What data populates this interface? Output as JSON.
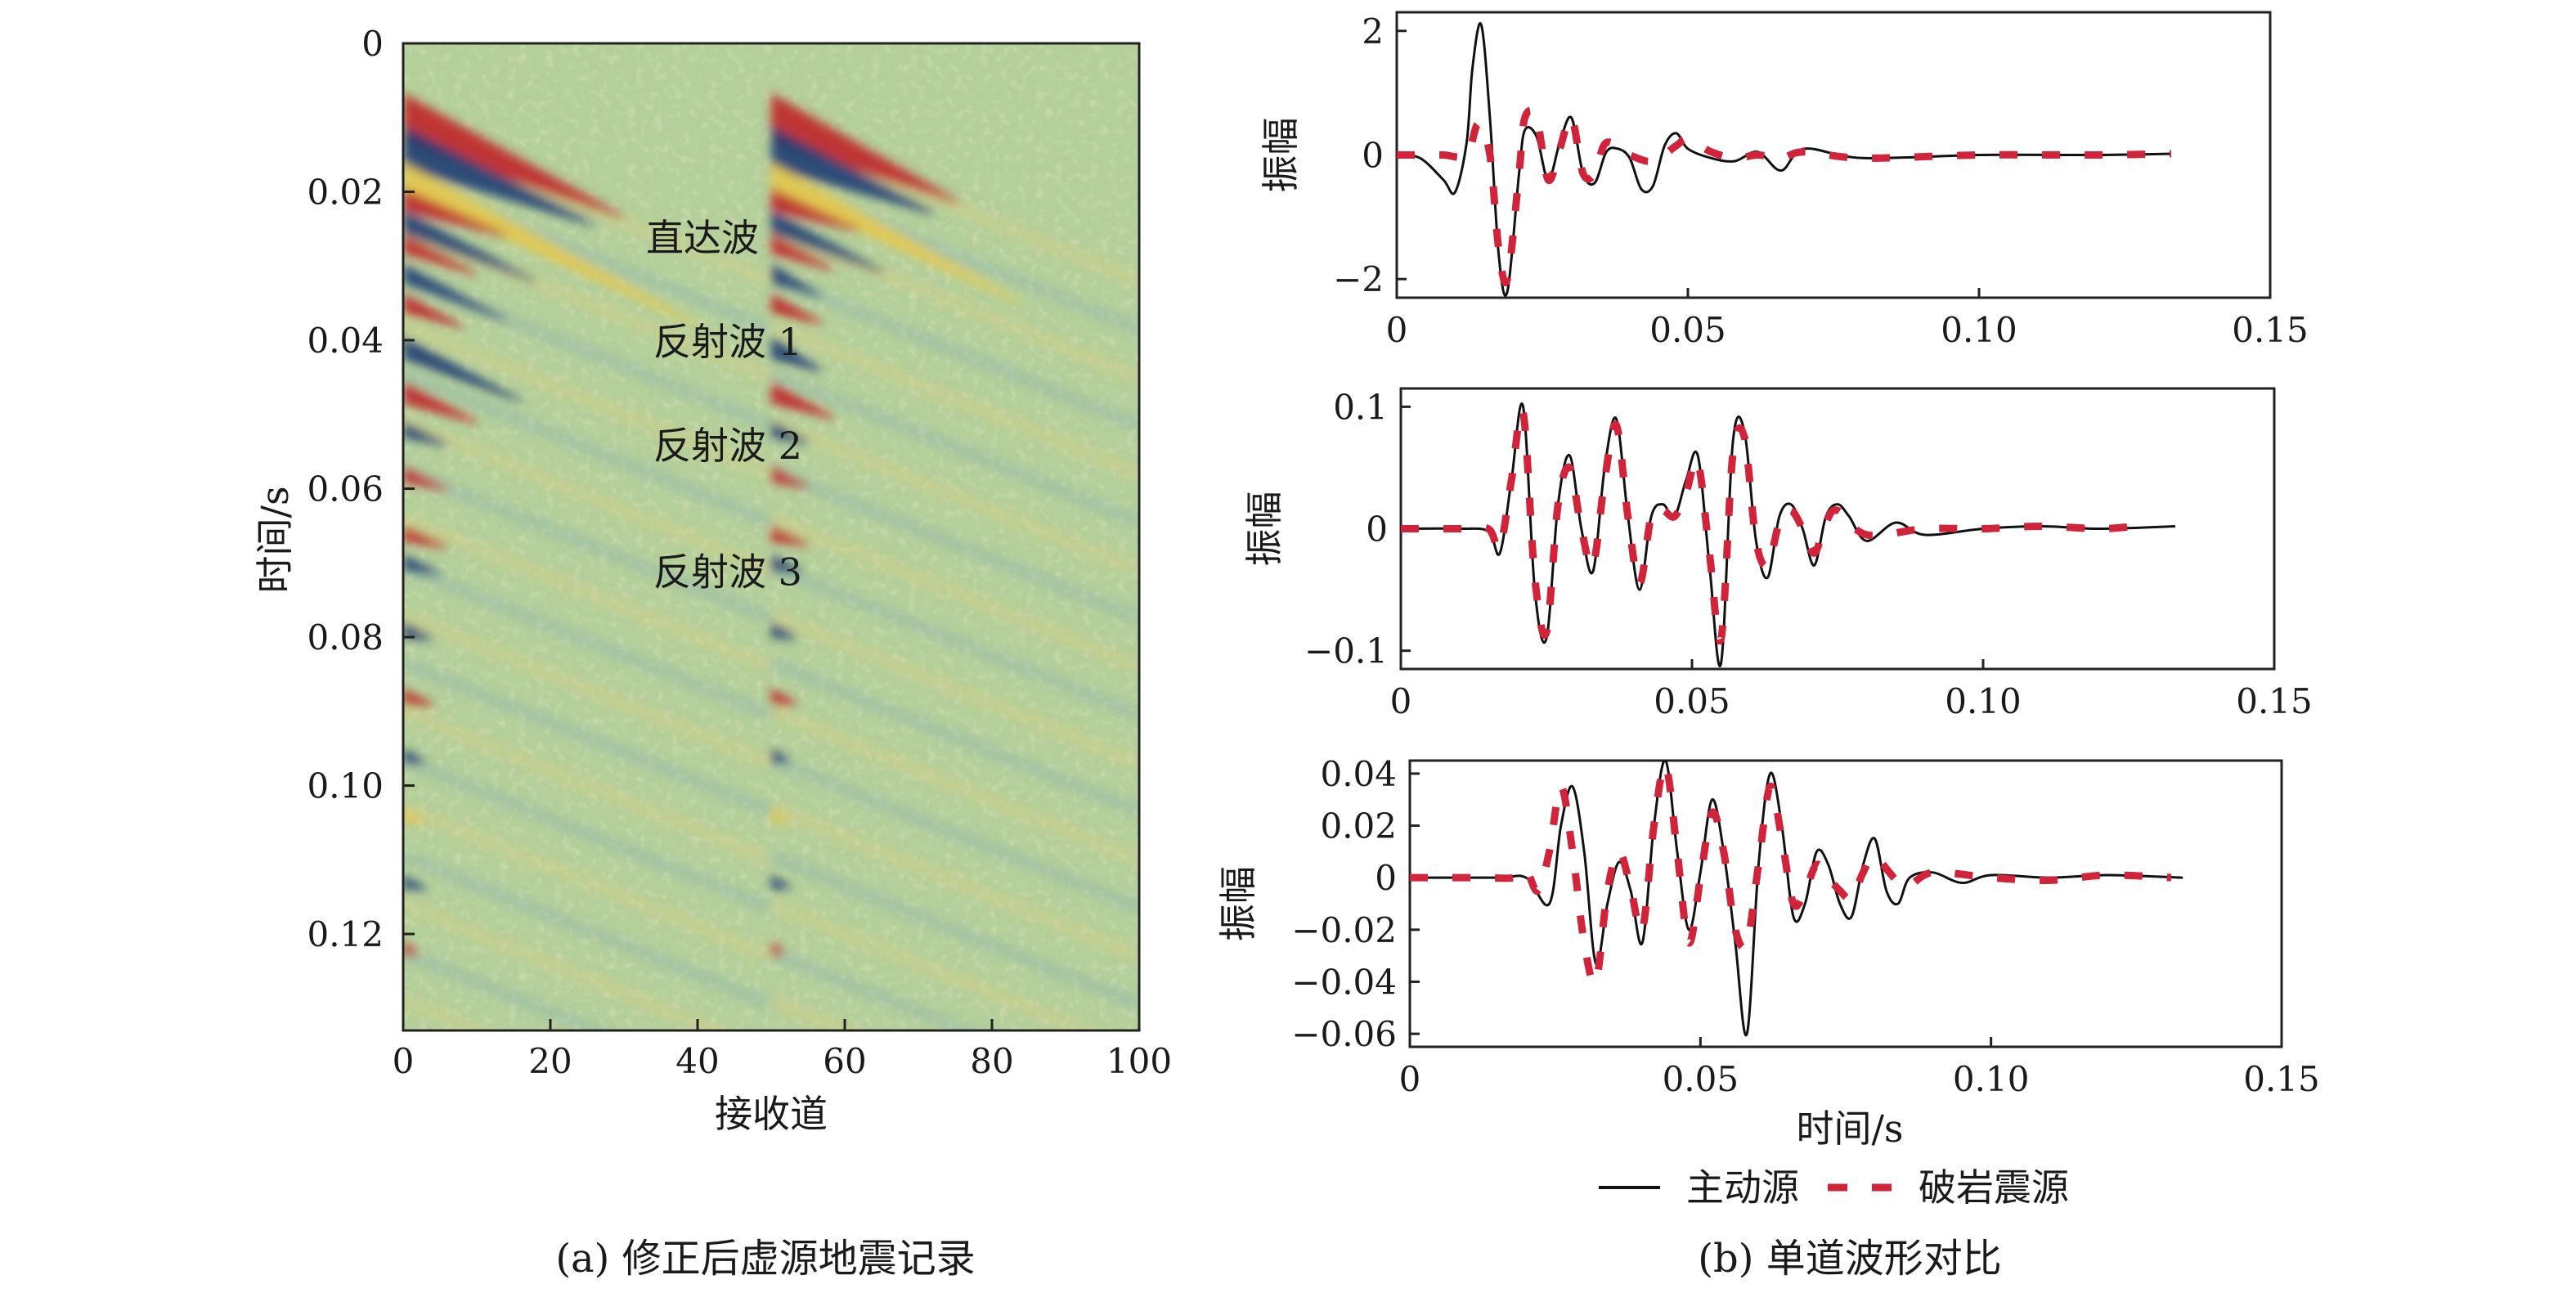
{
  "panel_a": {
    "caption": "(a) 修正后虚源地震记录"
  },
  "panel_b": {
    "caption": "(b) 单道波形对比"
  },
  "chart_data": [
    {
      "type": "heatmap",
      "xlabel": "接收道",
      "ylabel": "时间/s",
      "xlim": [
        0,
        100
      ],
      "ylim": [
        0.133,
        0
      ],
      "xticks": [
        0,
        20,
        40,
        60,
        80,
        100
      ],
      "yticks": [
        0,
        0.02,
        0.04,
        0.06,
        0.08,
        0.1,
        0.12
      ],
      "ytick_labels": [
        "0",
        "0.02",
        "0.04",
        "0.06",
        "0.08",
        "0.10",
        "0.12"
      ],
      "annotations": [
        {
          "text": "直达波",
          "x": 33,
          "y": 0.028
        },
        {
          "text": "反射波 1",
          "x": 34,
          "y": 0.042
        },
        {
          "text": "反射波 2",
          "x": 34,
          "y": 0.056
        },
        {
          "text": "反射波 3",
          "x": 34,
          "y": 0.073
        }
      ],
      "colors": {
        "background": "#b4cf9a",
        "positive": "#c0242a",
        "negative": "#1f3d73",
        "mid": "#e7c84a"
      }
    },
    {
      "type": "line",
      "ylabel": "振幅",
      "xlim": [
        0,
        0.15
      ],
      "ylim": [
        -2.3,
        2.3
      ],
      "xticks": [
        0,
        0.05,
        0.1,
        0.15
      ],
      "xtick_labels": [
        "0",
        "0.05",
        "0.10",
        "0.15"
      ],
      "yticks": [
        -2,
        0,
        2
      ],
      "ytick_labels": [
        "−2",
        "0",
        "2"
      ],
      "series": [
        {
          "name": "主动源",
          "color": "#111111",
          "x": [
            0,
            0.004,
            0.008,
            0.01,
            0.012,
            0.013,
            0.0145,
            0.016,
            0.0175,
            0.019,
            0.021,
            0.022,
            0.024,
            0.026,
            0.028,
            0.03,
            0.032,
            0.034,
            0.036,
            0.038,
            0.04,
            0.042,
            0.044,
            0.046,
            0.048,
            0.05,
            0.054,
            0.058,
            0.062,
            0.066,
            0.07,
            0.08,
            0.1,
            0.12,
            0.133
          ],
          "y": [
            0,
            -0.05,
            -0.4,
            -0.6,
            0.2,
            1.4,
            2.1,
            0.6,
            -1.6,
            -2.2,
            -0.3,
            0.4,
            0.3,
            -0.4,
            0.2,
            0.6,
            -0.3,
            -0.45,
            0.05,
            0.1,
            -0.05,
            -0.55,
            -0.5,
            0.15,
            0.35,
            0.1,
            -0.05,
            -0.1,
            0.05,
            -0.25,
            0.1,
            -0.05,
            0,
            0,
            0.02
          ]
        },
        {
          "name": "破岩震源",
          "color": "#d1243b",
          "x": [
            0,
            0.004,
            0.008,
            0.012,
            0.014,
            0.016,
            0.0175,
            0.019,
            0.021,
            0.022,
            0.024,
            0.026,
            0.028,
            0.03,
            0.032,
            0.034,
            0.036,
            0.04,
            0.044,
            0.048,
            0.05,
            0.054,
            0.058,
            0.062,
            0.066,
            0.07,
            0.08,
            0.1,
            0.12,
            0.133
          ],
          "y": [
            0,
            0,
            0,
            0,
            0.5,
            0,
            -1.5,
            -2.0,
            -0.3,
            0.6,
            0.6,
            -0.4,
            0.1,
            0.6,
            -0.3,
            -0.3,
            0.2,
            0,
            -0.1,
            0.15,
            0.25,
            0.05,
            -0.05,
            0,
            -0.05,
            0.05,
            -0.05,
            0,
            0,
            0.02
          ]
        }
      ]
    },
    {
      "type": "line",
      "ylabel": "振幅",
      "xlim": [
        0,
        0.15
      ],
      "ylim": [
        -0.115,
        0.115
      ],
      "xticks": [
        0,
        0.05,
        0.1,
        0.15
      ],
      "xtick_labels": [
        "0",
        "0.05",
        "0.10",
        "0.15"
      ],
      "yticks": [
        -0.1,
        0,
        0.1
      ],
      "ytick_labels": [
        "−0.1",
        "0",
        "0.1"
      ],
      "series": [
        {
          "name": "主动源",
          "color": "#111111",
          "x": [
            0,
            0.01,
            0.015,
            0.017,
            0.019,
            0.021,
            0.023,
            0.025,
            0.027,
            0.029,
            0.031,
            0.033,
            0.035,
            0.037,
            0.039,
            0.041,
            0.043,
            0.045,
            0.047,
            0.049,
            0.051,
            0.053,
            0.055,
            0.057,
            0.059,
            0.061,
            0.063,
            0.065,
            0.067,
            0.069,
            0.071,
            0.073,
            0.075,
            0.077,
            0.08,
            0.085,
            0.09,
            0.1,
            0.11,
            0.12,
            0.133
          ],
          "y": [
            0,
            0,
            -0.002,
            -0.02,
            0.04,
            0.1,
            -0.05,
            -0.09,
            0.02,
            0.06,
            0,
            -0.035,
            0.05,
            0.09,
            0.01,
            -0.05,
            0.01,
            0.02,
            0.01,
            0.04,
            0.06,
            -0.03,
            -0.11,
            0.07,
            0.08,
            -0.01,
            -0.04,
            0.01,
            0.02,
            0,
            -0.03,
            0.01,
            0.02,
            0.01,
            -0.01,
            0.005,
            -0.005,
            0,
            0.002,
            0,
            0.002
          ]
        },
        {
          "name": "破岩震源",
          "color": "#d1243b",
          "x": [
            0,
            0.01,
            0.015,
            0.017,
            0.019,
            0.021,
            0.023,
            0.025,
            0.027,
            0.029,
            0.031,
            0.033,
            0.035,
            0.037,
            0.039,
            0.041,
            0.043,
            0.045,
            0.047,
            0.049,
            0.051,
            0.053,
            0.055,
            0.057,
            0.059,
            0.061,
            0.063,
            0.065,
            0.067,
            0.069,
            0.071,
            0.073,
            0.075,
            0.08,
            0.09,
            0.1,
            0.11,
            0.12,
            0.126
          ],
          "y": [
            0,
            0,
            0,
            -0.015,
            0.04,
            0.095,
            -0.04,
            -0.085,
            0.02,
            0.05,
            0,
            -0.03,
            0.04,
            0.085,
            0.01,
            -0.045,
            0.01,
            0.015,
            0.01,
            0.03,
            0.055,
            -0.02,
            -0.09,
            0.06,
            0.075,
            -0.01,
            -0.03,
            0.005,
            0.015,
            0,
            -0.02,
            0.005,
            0.015,
            -0.005,
            0,
            0,
            0.002,
            0,
            0.002
          ]
        }
      ]
    },
    {
      "type": "line",
      "ylabel": "振幅",
      "xlabel": "时间/s",
      "xlim": [
        0,
        0.15
      ],
      "ylim": [
        -0.065,
        0.045
      ],
      "xticks": [
        0,
        0.05,
        0.1,
        0.15
      ],
      "xtick_labels": [
        "0",
        "0.05",
        "0.10",
        "0.15"
      ],
      "yticks": [
        -0.06,
        -0.04,
        -0.02,
        0,
        0.02,
        0.04
      ],
      "ytick_labels": [
        "−0.06",
        "−0.04",
        "−0.02",
        "0",
        "0.02",
        "0.04"
      ],
      "legend": "bottom",
      "series": [
        {
          "name": "主动源",
          "color": "#111111",
          "x": [
            0,
            0.015,
            0.02,
            0.024,
            0.026,
            0.028,
            0.03,
            0.032,
            0.034,
            0.036,
            0.038,
            0.04,
            0.042,
            0.044,
            0.046,
            0.048,
            0.05,
            0.052,
            0.054,
            0.056,
            0.058,
            0.06,
            0.062,
            0.064,
            0.066,
            0.068,
            0.07,
            0.072,
            0.074,
            0.076,
            0.078,
            0.08,
            0.082,
            0.084,
            0.086,
            0.09,
            0.095,
            0.1,
            0.11,
            0.12,
            0.133
          ],
          "y": [
            0,
            0,
            0,
            -0.01,
            0.02,
            0.035,
            0.01,
            -0.033,
            -0.01,
            0.006,
            -0.005,
            -0.025,
            0.02,
            0.045,
            0.01,
            -0.02,
            0.002,
            0.03,
            0.01,
            -0.025,
            -0.06,
            0.005,
            0.04,
            0.02,
            -0.015,
            -0.01,
            0.01,
            0.005,
            -0.01,
            -0.015,
            0.005,
            0.015,
            -0.005,
            -0.01,
            0,
            0.002,
            -0.002,
            0.001,
            0,
            0.001,
            0
          ]
        },
        {
          "name": "破岩震源",
          "color": "#d1243b",
          "x": [
            0,
            0.012,
            0.018,
            0.02,
            0.022,
            0.024,
            0.026,
            0.028,
            0.03,
            0.032,
            0.034,
            0.036,
            0.038,
            0.04,
            0.042,
            0.044,
            0.046,
            0.048,
            0.05,
            0.052,
            0.054,
            0.056,
            0.058,
            0.06,
            0.062,
            0.064,
            0.066,
            0.068,
            0.07,
            0.072,
            0.074,
            0.076,
            0.078,
            0.08,
            0.085,
            0.09,
            0.1,
            0.11,
            0.12,
            0.131
          ],
          "y": [
            0,
            0,
            0,
            0.003,
            -0.005,
            0.01,
            0.035,
            0.01,
            -0.025,
            -0.04,
            -0.005,
            0.01,
            -0.004,
            -0.02,
            0.02,
            0.043,
            0.01,
            -0.025,
            0,
            0.025,
            0.01,
            -0.02,
            -0.025,
            0.005,
            0.035,
            0.015,
            -0.01,
            -0.005,
            0.005,
            0,
            -0.005,
            -0.008,
            0.002,
            0.008,
            -0.003,
            0.002,
            0,
            -0.001,
            0.001,
            0
          ]
        }
      ]
    }
  ]
}
